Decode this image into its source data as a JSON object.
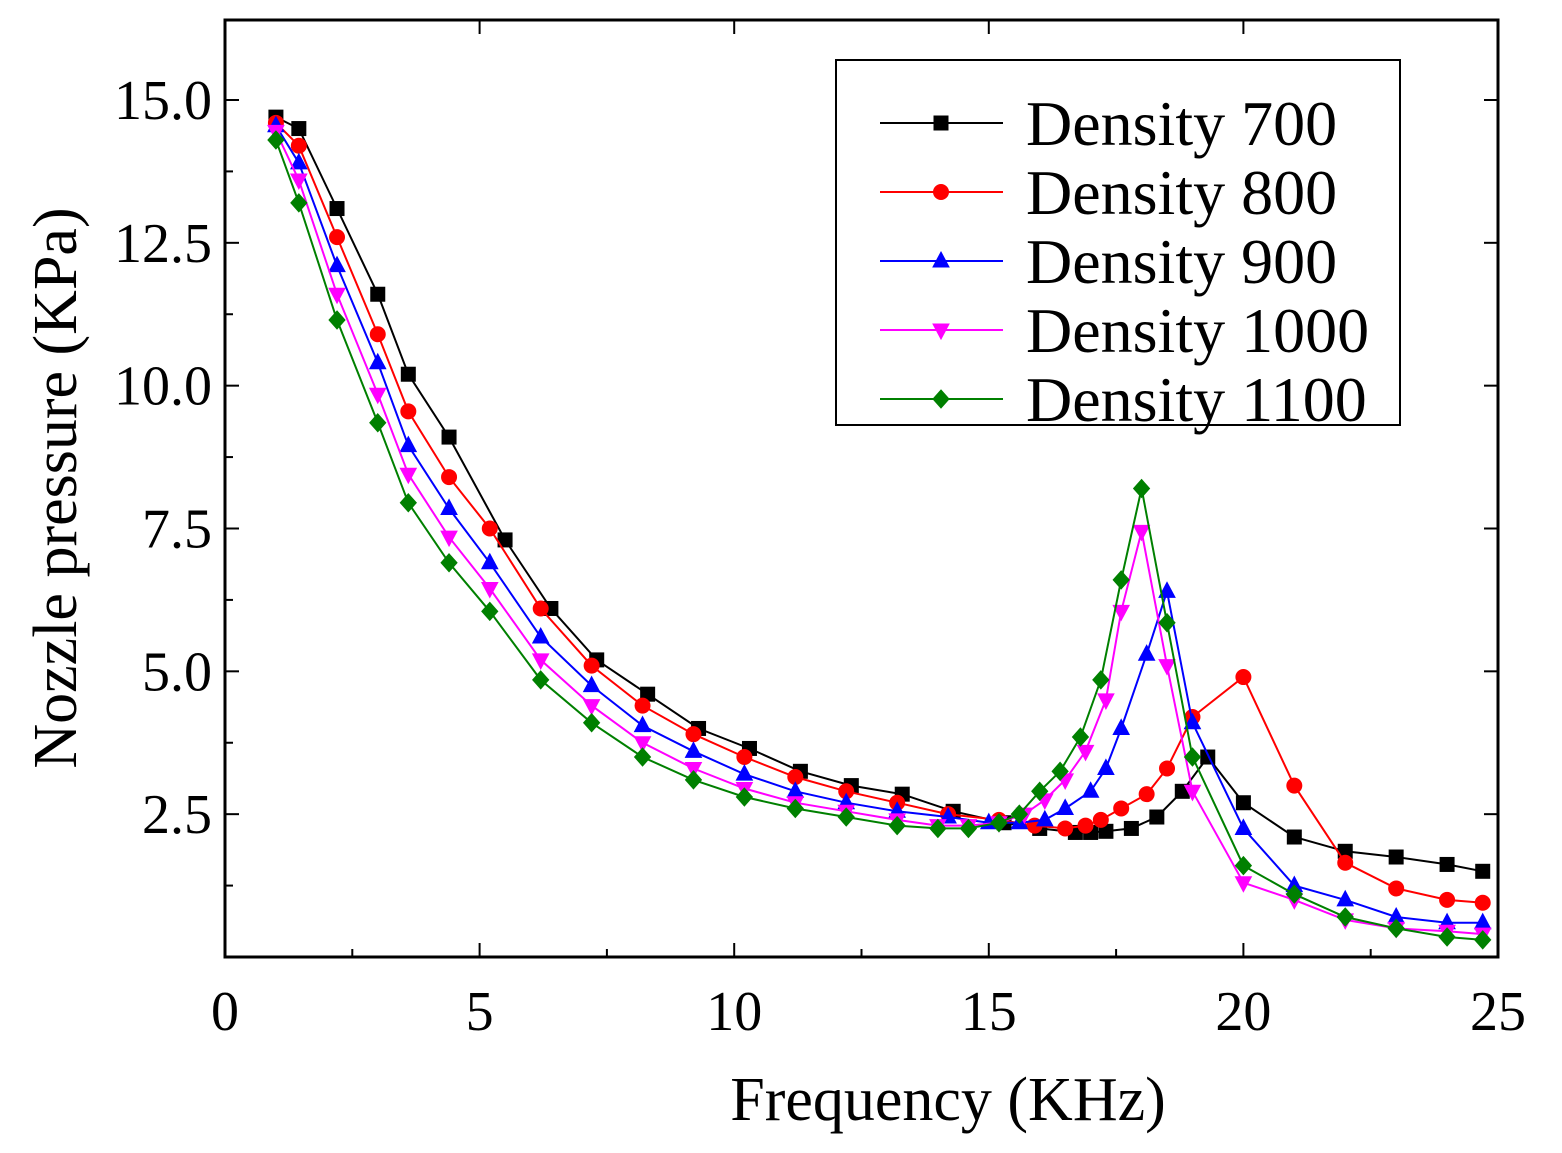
{
  "chart_data": {
    "type": "line",
    "title": "",
    "xlabel": "Frequency (KHz)",
    "ylabel": "Nozzle pressure (KPa)",
    "xlim": [
      0,
      25
    ],
    "ylim": [
      0,
      16.4
    ],
    "xticks": [
      0,
      5,
      10,
      15,
      20,
      25
    ],
    "xtick_labels": [
      "0",
      "5",
      "10",
      "15",
      "20",
      "25"
    ],
    "yticks": [
      2.5,
      5.0,
      7.5,
      10.0,
      12.5,
      15.0
    ],
    "ytick_labels": [
      "2.5",
      "5.0",
      "7.5",
      "10.0",
      "12.5",
      "15.0"
    ],
    "grid": false,
    "legend_position": "top-right",
    "series": [
      {
        "name": "Density 700",
        "color": "#000000",
        "marker": "square",
        "x": [
          1.0,
          1.45,
          2.2,
          3.0,
          3.6,
          4.4,
          5.5,
          6.4,
          7.3,
          8.3,
          9.3,
          10.3,
          11.3,
          12.3,
          13.3,
          14.3,
          15.3,
          16.0,
          16.7,
          17.0,
          17.3,
          17.8,
          18.3,
          18.8,
          19.3,
          20.0,
          21.0,
          22.0,
          23.0,
          24.0,
          24.7
        ],
        "y": [
          14.7,
          14.5,
          13.1,
          11.6,
          10.2,
          9.1,
          7.3,
          6.1,
          5.2,
          4.6,
          4.0,
          3.65,
          3.25,
          3.0,
          2.85,
          2.55,
          2.35,
          2.25,
          2.18,
          2.18,
          2.2,
          2.25,
          2.45,
          2.9,
          3.5,
          2.7,
          2.1,
          1.85,
          1.75,
          1.62,
          1.5
        ]
      },
      {
        "name": "Density 800",
        "color": "#ff0000",
        "marker": "circle",
        "x": [
          1.0,
          1.45,
          2.2,
          3.0,
          3.6,
          4.4,
          5.2,
          6.2,
          7.2,
          8.2,
          9.2,
          10.2,
          11.2,
          12.2,
          13.2,
          14.2,
          15.2,
          15.9,
          16.5,
          16.9,
          17.2,
          17.6,
          18.1,
          18.5,
          19.0,
          20.0,
          21.0,
          22.0,
          23.0,
          24.0,
          24.7
        ],
        "y": [
          14.6,
          14.2,
          12.6,
          10.9,
          9.55,
          8.4,
          7.5,
          6.1,
          5.1,
          4.4,
          3.9,
          3.5,
          3.15,
          2.9,
          2.7,
          2.5,
          2.4,
          2.3,
          2.25,
          2.3,
          2.4,
          2.6,
          2.85,
          3.3,
          4.2,
          4.9,
          3.0,
          1.65,
          1.2,
          1.0,
          0.95
        ]
      },
      {
        "name": "Density 900",
        "color": "#0000ff",
        "marker": "triangle-up",
        "x": [
          1.0,
          1.45,
          2.2,
          3.0,
          3.6,
          4.4,
          5.2,
          6.2,
          7.2,
          8.2,
          9.2,
          10.2,
          11.2,
          12.2,
          13.2,
          14.2,
          15.0,
          15.6,
          16.1,
          16.5,
          17.0,
          17.3,
          17.6,
          18.1,
          18.5,
          19.0,
          20.0,
          21.0,
          22.0,
          23.0,
          24.0,
          24.7
        ],
        "y": [
          14.55,
          13.9,
          12.1,
          10.4,
          8.95,
          7.85,
          6.9,
          5.6,
          4.75,
          4.05,
          3.6,
          3.2,
          2.9,
          2.7,
          2.55,
          2.45,
          2.35,
          2.35,
          2.4,
          2.6,
          2.9,
          3.3,
          4.0,
          5.3,
          6.4,
          4.1,
          2.25,
          1.25,
          1.0,
          0.7,
          0.6,
          0.6
        ]
      },
      {
        "name": "Density 1000",
        "color": "#ff00ff",
        "marker": "triangle-down",
        "x": [
          1.0,
          1.45,
          2.2,
          3.0,
          3.6,
          4.4,
          5.2,
          6.2,
          7.2,
          8.2,
          9.2,
          10.2,
          11.2,
          12.2,
          13.2,
          14.0,
          14.6,
          15.2,
          15.7,
          16.1,
          16.5,
          16.9,
          17.3,
          17.6,
          18.0,
          18.5,
          19.0,
          20.0,
          21.0,
          22.0,
          23.0,
          24.0,
          24.7
        ],
        "y": [
          14.45,
          13.6,
          11.6,
          9.85,
          8.45,
          7.35,
          6.45,
          5.2,
          4.4,
          3.75,
          3.3,
          2.95,
          2.7,
          2.55,
          2.4,
          2.3,
          2.3,
          2.35,
          2.5,
          2.75,
          3.1,
          3.6,
          4.5,
          6.05,
          7.45,
          5.1,
          2.9,
          1.3,
          1.0,
          0.65,
          0.5,
          0.45,
          0.4
        ]
      },
      {
        "name": "Density 1100",
        "color": "#008000",
        "marker": "diamond",
        "x": [
          1.0,
          1.45,
          2.2,
          3.0,
          3.6,
          4.4,
          5.2,
          6.2,
          7.2,
          8.2,
          9.2,
          10.2,
          11.2,
          12.2,
          13.2,
          14.0,
          14.6,
          15.2,
          15.6,
          16.0,
          16.4,
          16.8,
          17.2,
          17.6,
          18.0,
          18.5,
          19.0,
          20.0,
          21.0,
          22.0,
          23.0,
          24.0,
          24.7
        ],
        "y": [
          14.3,
          13.2,
          11.15,
          9.35,
          7.95,
          6.9,
          6.05,
          4.85,
          4.1,
          3.5,
          3.1,
          2.8,
          2.6,
          2.45,
          2.3,
          2.25,
          2.25,
          2.35,
          2.5,
          2.9,
          3.25,
          3.85,
          4.85,
          6.6,
          8.2,
          5.85,
          3.5,
          1.6,
          1.1,
          0.7,
          0.5,
          0.35,
          0.3
        ]
      }
    ]
  }
}
